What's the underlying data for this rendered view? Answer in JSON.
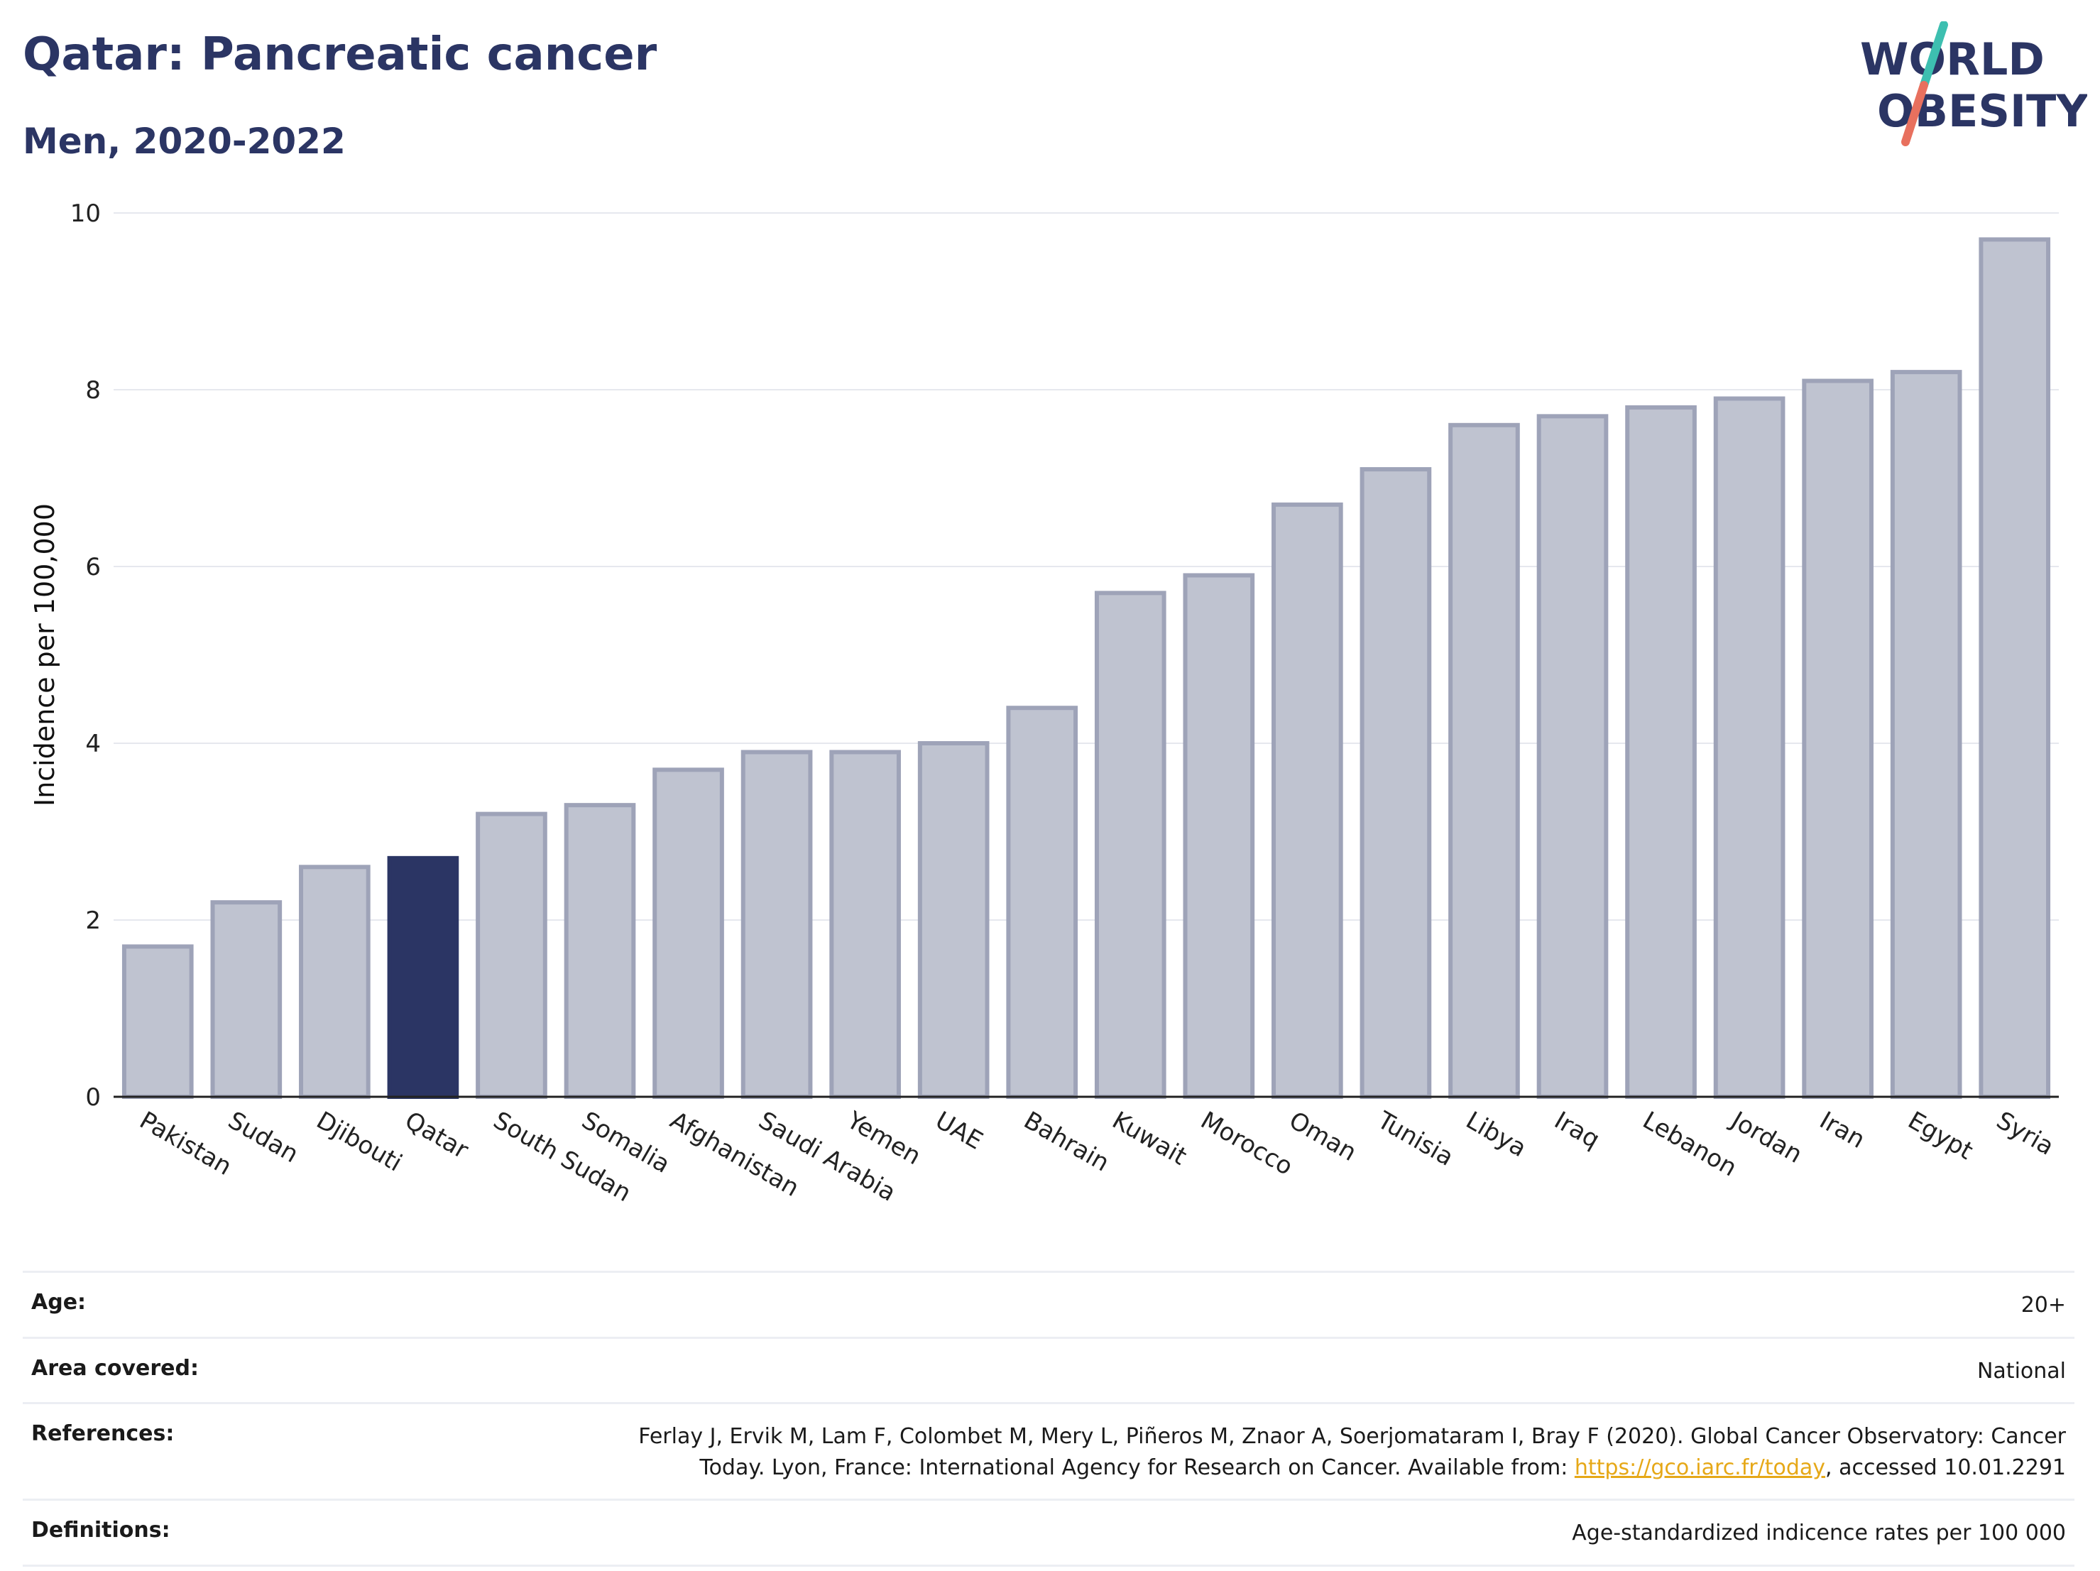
{
  "header": {
    "title": "Qatar: Pancreatic cancer",
    "subtitle": "Men, 2020-2022"
  },
  "logo": {
    "line1": "WORLD",
    "line2": "OBESITY",
    "accent_teal": "#3dbfb0",
    "accent_red": "#e8705e",
    "text_color": "#2b3564"
  },
  "chart_data": {
    "type": "bar",
    "ylabel": "Incidence per 100,000",
    "xlabel": "",
    "ylim": [
      0,
      10
    ],
    "yticks": [
      0,
      2,
      4,
      6,
      8,
      10
    ],
    "grid": true,
    "highlight": "Qatar",
    "colors": {
      "default": "#bfc3d0",
      "default_border": "#9ea3b8",
      "highlight": "#2b3564"
    },
    "categories": [
      "Pakistan",
      "Sudan",
      "Djibouti",
      "Qatar",
      "South Sudan",
      "Somalia",
      "Afghanistan",
      "Saudi Arabia",
      "Yemen",
      "UAE",
      "Bahrain",
      "Kuwait",
      "Morocco",
      "Oman",
      "Tunisia",
      "Libya",
      "Iraq",
      "Lebanon",
      "Jordan",
      "Iran",
      "Egypt",
      "Syria"
    ],
    "values": [
      1.7,
      2.2,
      2.6,
      2.7,
      3.2,
      3.3,
      3.7,
      3.9,
      3.9,
      4.0,
      4.4,
      5.7,
      5.9,
      6.7,
      7.1,
      7.6,
      7.7,
      7.8,
      7.9,
      8.1,
      8.2,
      9.7
    ]
  },
  "meta": {
    "age_label": "Age:",
    "age_value": "20+",
    "area_label": "Area covered:",
    "area_value": "National",
    "references_label": "References:",
    "references_line1": "Ferlay J, Ervik M, Lam F, Colombet M, Mery L, Piñeros M, Znaor A, Soerjomataram I, Bray F (2020). Global Cancer Observatory: Cancer",
    "references_line2_pre": "Today. Lyon, France: International Agency for Research on Cancer. Available from: ",
    "references_link": "https://gco.iarc.fr/today",
    "references_line2_post": ", accessed 10.01.2291",
    "definitions_label": "Definitions:",
    "definitions_value": "Age-standardized indicence rates per 100 000"
  }
}
